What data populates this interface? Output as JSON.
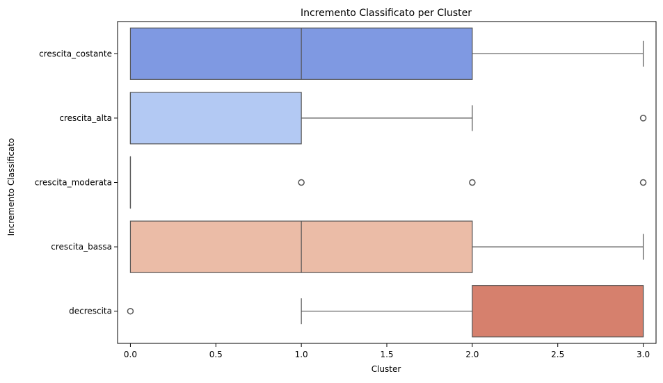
{
  "chart_data": {
    "type": "boxplot",
    "orientation": "horizontal",
    "title": "Incremento Classificato per Cluster",
    "xlabel": "Cluster",
    "ylabel": "Incremento Classificato",
    "xlim": [
      -0.075,
      3.075
    ],
    "xticks": [
      0.0,
      0.5,
      1.0,
      1.5,
      2.0,
      2.5,
      3.0
    ],
    "xtick_labels": [
      "0.0",
      "0.5",
      "1.0",
      "1.5",
      "2.0",
      "2.5",
      "3.0"
    ],
    "grid": false,
    "legend": "none",
    "categories": [
      "crescita_costante",
      "crescita_alta",
      "crescita_moderata",
      "crescita_bassa",
      "decrescita"
    ],
    "boxes": [
      {
        "category": "crescita_costante",
        "color": "#7f99e2",
        "whisker_low": 0,
        "q1": 0,
        "median": 1,
        "q3": 2,
        "whisker_high": 3,
        "outliers": []
      },
      {
        "category": "crescita_alta",
        "color": "#b3c9f3",
        "whisker_low": 0,
        "q1": 0,
        "median": 0,
        "q3": 1,
        "whisker_high": 2,
        "outliers": [
          3
        ]
      },
      {
        "category": "crescita_moderata",
        "color": "#dcdcdc",
        "whisker_low": 0,
        "q1": 0,
        "median": 0,
        "q3": 0,
        "whisker_high": 0,
        "outliers": [
          1,
          2,
          3
        ]
      },
      {
        "category": "crescita_bassa",
        "color": "#ebbca7",
        "whisker_low": 0,
        "q1": 0,
        "median": 1,
        "q3": 2,
        "whisker_high": 3,
        "outliers": []
      },
      {
        "category": "decrescita",
        "color": "#d6806d",
        "whisker_low": 1,
        "q1": 2,
        "median": 3,
        "q3": 3,
        "whisker_high": 3,
        "outliers": [
          0
        ]
      }
    ]
  }
}
